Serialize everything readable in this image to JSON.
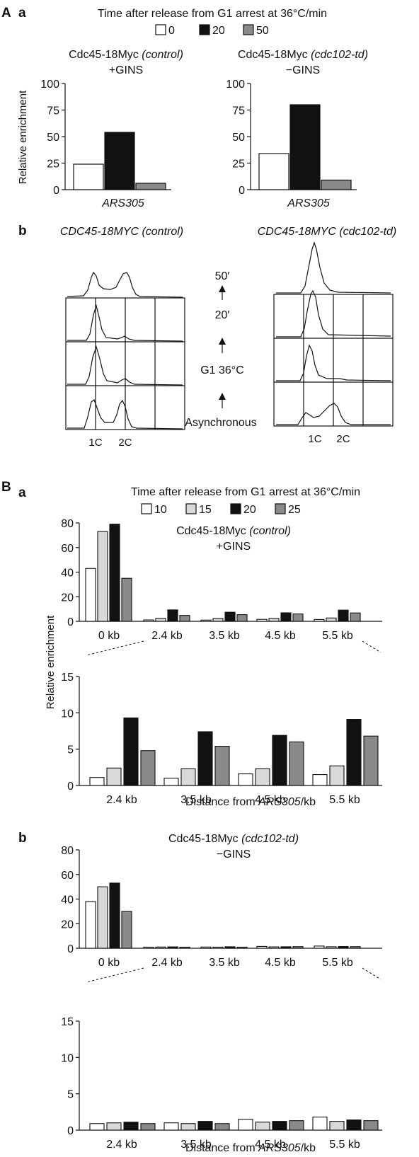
{
  "colors": {
    "0": "#ffffff",
    "10": "#ffffff",
    "15": "#d9d9d9",
    "20": "#111111",
    "25": "#8a8a8a",
    "50": "#8a8a8a"
  },
  "panel_A": {
    "label": "A",
    "sub_a": "a",
    "sub_b": "b",
    "time_title": "Time after release from G1 arrest at 36°C/min",
    "legend": [
      "0",
      "20",
      "50"
    ],
    "ylabel": "Relative enrichment",
    "left_title_1": "Cdc45-18Myc ",
    "left_title_1_it": "(control)",
    "left_title_2": "+GINS",
    "right_title_1": "Cdc45-18Myc ",
    "right_title_1_it": "(cdc102-td)",
    "right_title_2": "−GINS",
    "xlabel": "ARS305",
    "yticks": [
      "0",
      "25",
      "50",
      "75",
      "100"
    ],
    "flow_left_title": "CDC45-18MYC (control)",
    "flow_right_title": "CDC45-18MYC (cdc102-td)",
    "flow_labels": [
      "50′",
      "20′",
      "G1 36°C",
      "Asynchronous"
    ],
    "dna_left": [
      "1C",
      "2C"
    ],
    "dna_right": [
      "1C",
      "2C"
    ]
  },
  "panel_B": {
    "label": "B",
    "sub_a": "a",
    "sub_b": "b",
    "time_title": "Time after release from G1 arrest at 36°C/min",
    "legend": [
      "10",
      "15",
      "20",
      "25"
    ],
    "ylabel": "Relative enrichment",
    "a_title_1": "Cdc45-18Myc ",
    "a_title_1_it": "(control)",
    "a_title_2": "+GINS",
    "b_title_1": "Cdc45-18Myc ",
    "b_title_1_it": "(cdc102-td)",
    "b_title_2": "−GINS",
    "xlabel_pre": "Distance from ",
    "xlabel_it": "ARS305",
    "xlabel_post": "/kb",
    "top_yticks": [
      "0",
      "20",
      "40",
      "60",
      "80"
    ],
    "zoom_yticks": [
      "0",
      "5",
      "10",
      "15"
    ],
    "top_categories": [
      "0 kb",
      "2.4 kb",
      "3.5 kb",
      "4.5 kb",
      "5.5 kb"
    ],
    "zoom_categories": [
      "2.4 kb",
      "3.5 kb",
      "4.5 kb",
      "5.5 kb"
    ]
  },
  "chart_data": [
    {
      "type": "bar",
      "title": "Cdc45-18Myc (control) +GINS",
      "categories": [
        "ARS305"
      ],
      "series": [
        {
          "name": "0",
          "values": [
            24
          ]
        },
        {
          "name": "20",
          "values": [
            54
          ]
        },
        {
          "name": "50",
          "values": [
            6
          ]
        }
      ],
      "xlabel": "ARS305",
      "ylabel": "Relative enrichment",
      "ylim": [
        0,
        100
      ]
    },
    {
      "type": "bar",
      "title": "Cdc45-18Myc (cdc102-td) −GINS",
      "categories": [
        "ARS305"
      ],
      "series": [
        {
          "name": "0",
          "values": [
            34
          ]
        },
        {
          "name": "20",
          "values": [
            80
          ]
        },
        {
          "name": "50",
          "values": [
            9
          ]
        }
      ],
      "xlabel": "ARS305",
      "ylabel": "Relative enrichment",
      "ylim": [
        0,
        100
      ]
    },
    {
      "type": "bar",
      "title": "Cdc45-18Myc (control) +GINS",
      "categories": [
        "0 kb",
        "2.4 kb",
        "3.5 kb",
        "4.5 kb",
        "5.5 kb"
      ],
      "series": [
        {
          "name": "10",
          "values": [
            43,
            1.1,
            1.0,
            1.6,
            1.5
          ]
        },
        {
          "name": "15",
          "values": [
            73,
            2.4,
            2.3,
            2.3,
            2.7
          ]
        },
        {
          "name": "20",
          "values": [
            79,
            9.3,
            7.4,
            6.9,
            9.1
          ]
        },
        {
          "name": "25",
          "values": [
            35,
            4.8,
            5.4,
            6.0,
            6.8
          ]
        }
      ],
      "xlabel": "Distance from ARS305/kb",
      "ylabel": "Relative enrichment",
      "ylim": [
        0,
        80
      ],
      "zoom_ylim": [
        0,
        15
      ]
    },
    {
      "type": "bar",
      "title": "Cdc45-18Myc (cdc102-td) −GINS",
      "categories": [
        "0 kb",
        "2.4 kb",
        "3.5 kb",
        "4.5 kb",
        "5.5 kb"
      ],
      "series": [
        {
          "name": "10",
          "values": [
            38,
            0.9,
            1.0,
            1.5,
            1.8
          ]
        },
        {
          "name": "15",
          "values": [
            50,
            1.0,
            0.9,
            1.1,
            1.2
          ]
        },
        {
          "name": "20",
          "values": [
            53,
            1.1,
            1.2,
            1.2,
            1.4
          ]
        },
        {
          "name": "25",
          "values": [
            30,
            0.9,
            0.9,
            1.3,
            1.3
          ]
        }
      ],
      "xlabel": "Distance from ARS305/kb",
      "ylabel": "Relative enrichment",
      "ylim": [
        0,
        80
      ],
      "zoom_ylim": [
        0,
        15
      ]
    }
  ]
}
